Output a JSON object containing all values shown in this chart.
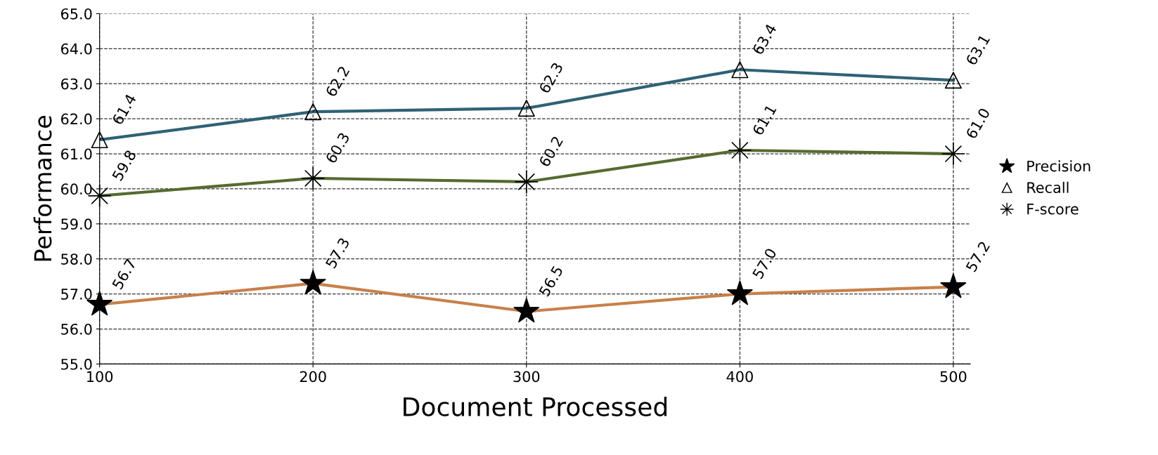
{
  "chart_data": {
    "type": "line",
    "xlabel": "Document Processed",
    "ylabel": "Performance",
    "x": [
      100,
      200,
      300,
      400,
      500
    ],
    "series": [
      {
        "name": "Precision",
        "color": "#c8804a",
        "marker": "star",
        "values": [
          56.7,
          57.3,
          56.5,
          57.0,
          57.2
        ],
        "value_labels": [
          "56.7",
          "57.3",
          "56.5",
          "57.0",
          "57.2"
        ]
      },
      {
        "name": "Recall",
        "color": "#2f6275",
        "marker": "triangle",
        "values": [
          61.4,
          62.2,
          62.3,
          63.4,
          63.1
        ],
        "value_labels": [
          "61.4",
          "62.2",
          "62.3",
          "63.4",
          "63.1"
        ]
      },
      {
        "name": "F-score",
        "color": "#566b30",
        "marker": "cross",
        "values": [
          59.8,
          60.3,
          60.2,
          61.1,
          61.0
        ],
        "value_labels": [
          "59.8",
          "60.3",
          "60.2",
          "61.1",
          "61.0"
        ]
      }
    ],
    "xlim": [
      100,
      508
    ],
    "xticks": [
      100,
      200,
      300,
      400,
      500
    ],
    "ylim": [
      55,
      65
    ],
    "yticks": [
      {
        "value": 55,
        "label": "55.0"
      },
      {
        "value": 56,
        "label": "56.0"
      },
      {
        "value": 57,
        "label": "57.0"
      },
      {
        "value": 58,
        "label": "58.0"
      },
      {
        "value": 59,
        "label": "59.0"
      },
      {
        "value": 60,
        "label": "60.0"
      },
      {
        "value": 61,
        "label": "61.0"
      },
      {
        "value": 62,
        "label": "62.0"
      },
      {
        "value": 63,
        "label": "63.0"
      },
      {
        "value": 64,
        "label": "64.0"
      },
      {
        "value": 65,
        "label": "65.0"
      }
    ],
    "grid": true,
    "legend": "right",
    "line_style": "solid"
  }
}
